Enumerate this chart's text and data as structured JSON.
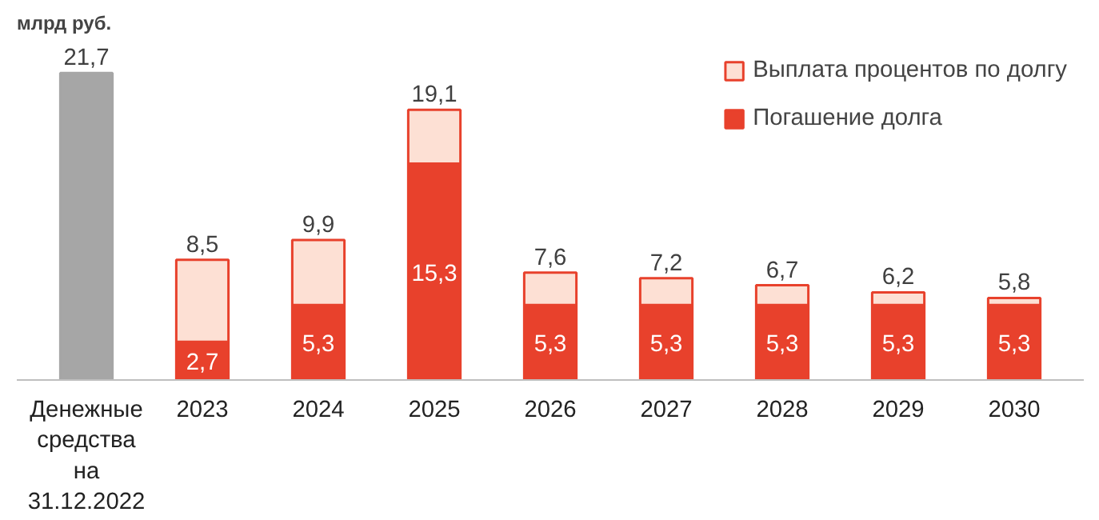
{
  "chart_data": {
    "type": "bar",
    "stacked": true,
    "ylabel": "млрд руб.",
    "categories": [
      "Денежные средства на 31.12.2022",
      "2023",
      "2024",
      "2025",
      "2026",
      "2027",
      "2028",
      "2029",
      "2030"
    ],
    "series": [
      {
        "color": "#a6a6a6",
        "values": [
          21.7,
          null,
          null,
          null,
          null,
          null,
          null,
          null,
          null
        ]
      },
      {
        "name": "Погашение долга",
        "color": "#e8412c",
        "values": [
          null,
          2.7,
          5.3,
          15.3,
          5.3,
          5.3,
          5.3,
          5.3,
          5.3
        ],
        "value_labels": [
          null,
          "2,7",
          "5,3",
          "15,3",
          "5,3",
          "5,3",
          "5,3",
          "5,3",
          "5,3"
        ]
      },
      {
        "name": "Выплата процентов по долгу",
        "color": "#fde0d4",
        "values": [
          null,
          5.8,
          4.6,
          3.8,
          2.3,
          1.9,
          1.4,
          0.9,
          0.5
        ]
      }
    ],
    "totals": [
      "21,7",
      "8,5",
      "9,9",
      "19,1",
      "7,6",
      "7,2",
      "6,7",
      "6,2",
      "5,8"
    ],
    "tick_labels": "x",
    "grid": false,
    "legend": "top right"
  }
}
